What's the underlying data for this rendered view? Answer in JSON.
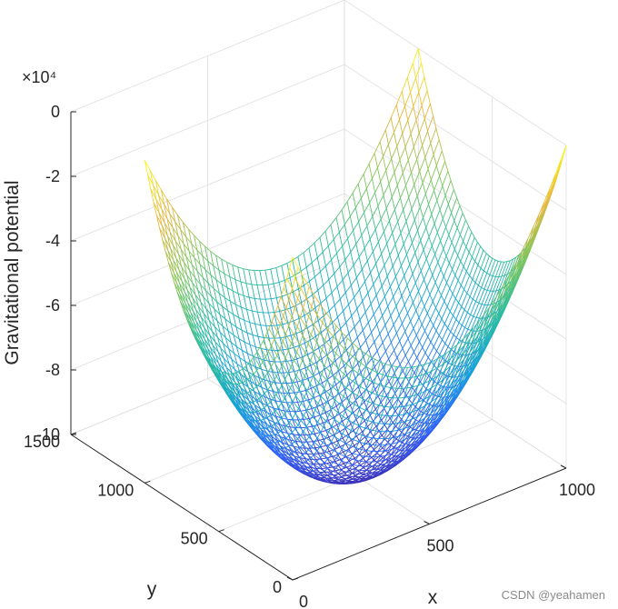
{
  "chart_data": {
    "type": "surface-mesh",
    "function": "z = -(x-500)^2 - (y-500)^2 + C (paraboloid bowl)",
    "x": {
      "label": "x",
      "range": [
        0,
        1000
      ],
      "ticks": [
        0,
        500,
        1000
      ]
    },
    "y": {
      "label": "y",
      "range": [
        0,
        1500
      ],
      "ticks": [
        0,
        500,
        1000,
        1500
      ]
    },
    "z": {
      "label": "Gravitational potential",
      "range": [
        -100000,
        0
      ],
      "tick_labels": [
        "-10",
        "-8",
        "-6",
        "-4",
        "-2",
        "0"
      ],
      "tick_values": [
        -100000,
        -80000,
        -60000,
        -40000,
        -20000,
        0
      ],
      "exponent_label": "×10⁴"
    },
    "surface": {
      "x_domain": [
        0,
        1000
      ],
      "y_domain": [
        0,
        1000
      ],
      "z_min": -100000,
      "z_max": 0,
      "grid_lines": 51,
      "colormap": "parula",
      "colormap_stops": [
        "#3e26a8",
        "#2f62fb",
        "#16a2d9",
        "#2bbd9e",
        "#85c65a",
        "#e9b63d",
        "#f9fb14"
      ]
    },
    "grid": true,
    "box": "3d axes with gridlines"
  },
  "watermark": "CSDN @yeahamen"
}
